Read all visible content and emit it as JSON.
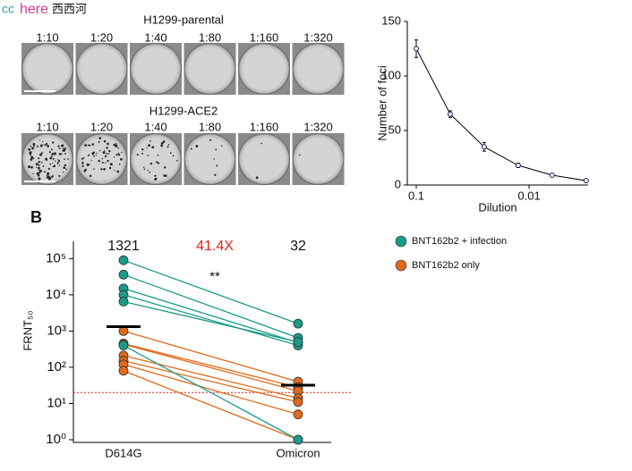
{
  "watermark": {
    "prefix": "cc",
    "word": "here",
    "site": "西西河"
  },
  "wells": {
    "rows": [
      {
        "title": "H1299-parental",
        "dilutions": [
          "1:10",
          "1:20",
          "1:40",
          "1:80",
          "1:160",
          "1:320"
        ]
      },
      {
        "title": "H1299-ACE2",
        "dilutions": [
          "1:10",
          "1:20",
          "1:40",
          "1:80",
          "1:160",
          "1:320"
        ]
      }
    ]
  },
  "chart_data": [
    {
      "type": "line",
      "x_label": "Dilution",
      "y_label": "Number of foci",
      "log_x": true,
      "reversed_x": true,
      "color": "#1a1a5e",
      "x": [
        0.1,
        0.05,
        0.025,
        0.0125,
        0.00625,
        0.003125
      ],
      "values": [
        125,
        65,
        35,
        18,
        9,
        4
      ],
      "errors": [
        8,
        3,
        4,
        2,
        1,
        1
      ],
      "xlim": [
        0.12,
        0.003
      ],
      "xticks": [
        0.1,
        0.01
      ],
      "ylim": [
        0,
        150
      ],
      "yticks": [
        0,
        50,
        100,
        150
      ]
    },
    {
      "type": "paired",
      "panel": "B",
      "y_label": "FRNT₅₀",
      "log_y": true,
      "categories": [
        "D614G",
        "Omicron"
      ],
      "ylim": [
        1,
        300000
      ],
      "yticks": [
        {
          "value": 1,
          "label": "10⁰"
        },
        {
          "value": 10,
          "label": "10¹"
        },
        {
          "value": 100,
          "label": "10²"
        },
        {
          "value": 1000,
          "label": "10³"
        },
        {
          "value": 10000,
          "label": "10⁴"
        },
        {
          "value": 100000,
          "label": "10⁵"
        }
      ],
      "series": [
        {
          "name": "BNT162b2 only",
          "color": "#e06a1c",
          "values": [
            [
              1000,
              40
            ],
            [
              450,
              28
            ],
            [
              430,
              22
            ],
            [
              210,
              14
            ],
            [
              150,
              11
            ],
            [
              120,
              5
            ],
            [
              80,
              1
            ]
          ]
        },
        {
          "name": "BNT162b2 + infection",
          "color": "#1a9a87",
          "values": [
            [
              90000,
              1600
            ],
            [
              36000,
              650
            ],
            [
              15000,
              480
            ],
            [
              10000,
              400
            ],
            [
              6500,
              500
            ],
            [
              400,
              1
            ]
          ]
        }
      ],
      "geomeans": [
        1321,
        32
      ],
      "fold_change": "41.4X",
      "significance": "**",
      "threshold": 20,
      "threshold_color": "#e0201c"
    }
  ]
}
